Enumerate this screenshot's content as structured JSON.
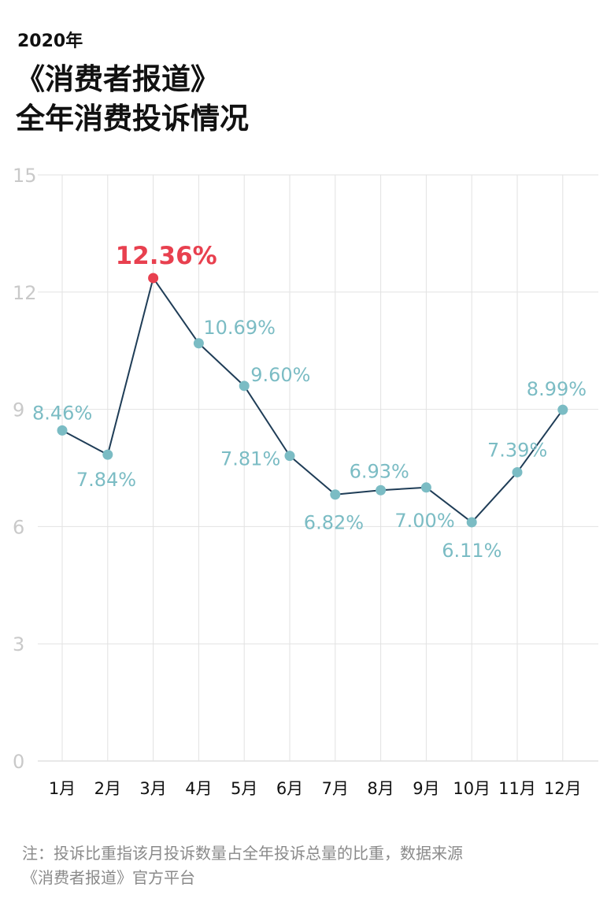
{
  "header": {
    "year": "2020年",
    "title_line1": "《消费者报道》",
    "title_line2": "全年消费投诉情况"
  },
  "note": {
    "line1": "注：投诉比重指该月投诉数量占全年投诉总量的比重，数据来源",
    "line2": "《消费者报道》官方平台"
  },
  "colors": {
    "line": "#1f3d57",
    "point": "#7bbcc4",
    "highlight": "#e8404f",
    "grid": "#e2e2e2",
    "axis_text": "#c9c9c9"
  },
  "chart_data": {
    "type": "line",
    "categories": [
      "1月",
      "2月",
      "3月",
      "4月",
      "5月",
      "6月",
      "7月",
      "8月",
      "9月",
      "10月",
      "11月",
      "12月"
    ],
    "values": [
      8.46,
      7.84,
      12.36,
      10.69,
      9.6,
      7.81,
      6.82,
      6.93,
      7.0,
      6.11,
      7.39,
      8.99
    ],
    "labels": [
      "8.46%",
      "7.84%",
      "12.36%",
      "10.69%",
      "9.60%",
      "7.81%",
      "6.82%",
      "6.93%",
      "7.00%",
      "6.11%",
      "7.39%",
      "8.99%"
    ],
    "highlight_index": 2,
    "ylim": [
      0,
      15
    ],
    "yticks": [
      0,
      3,
      6,
      9,
      12,
      15
    ],
    "ytick_labels": [
      "0",
      "3",
      "6",
      "9",
      "12",
      "15"
    ],
    "grid": true,
    "xlabel": "",
    "ylabel": ""
  }
}
